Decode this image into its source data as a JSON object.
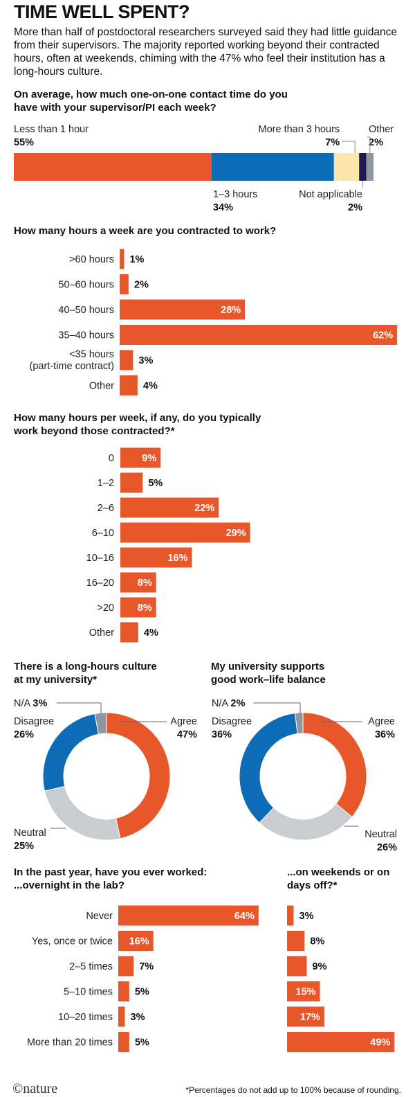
{
  "title": "TIME WELL SPENT?",
  "subtitle": "More than half of postdoctoral researchers surveyed said they had little guidance from their supervisors. The majority reported working beyond their contracted hours, often at weekends, chiming with the 47% who feel their institution has a long-hours culture.",
  "footnote": "*Percentages do not add up to 100% because of rounding.",
  "brand": "©nature",
  "colors": {
    "orange": "#e8572a",
    "blue": "#0e6bb5",
    "cream": "#fde6ac",
    "navy": "#1b1a52",
    "gray": "#8f96a0",
    "lightgray": "#c9ccd1"
  },
  "chart_data": [
    {
      "type": "bar",
      "stacked": true,
      "title": "On average, how much one-on-one contact time do you have with your supervisor/PI each week?",
      "segments": [
        {
          "label": "Less than 1 hour",
          "value": 55,
          "display": "55%",
          "color": "#e8572a"
        },
        {
          "label": "1–3 hours",
          "value": 34,
          "display": "34%",
          "color": "#0e6bb5"
        },
        {
          "label": "More than 3 hours",
          "value": 7,
          "display": "7%",
          "color": "#fde6ac"
        },
        {
          "label": "Not applicable",
          "value": 2,
          "display": "2%",
          "color": "#1b1a52"
        },
        {
          "label": "Other",
          "value": 2,
          "display": "2%",
          "color": "#8f96a0"
        }
      ]
    },
    {
      "type": "bar",
      "orientation": "horizontal",
      "title": "How many hours a week are you contracted to work?",
      "categories": [
        ">60 hours",
        "50–60 hours",
        "40–50 hours",
        "35–40 hours",
        "<35 hours\n(part-time contract)",
        "Other"
      ],
      "values": [
        1,
        2,
        28,
        62,
        3,
        4
      ],
      "labels": [
        "1%",
        "2%",
        "28%",
        "62%",
        "3%",
        "4%"
      ]
    },
    {
      "type": "bar",
      "orientation": "horizontal",
      "title": "How many hours per week, if any, do you typically work beyond those contracted?*",
      "categories": [
        "0",
        "1–2",
        "2–6",
        "6–10",
        "10–16",
        "16–20",
        ">20",
        "Other"
      ],
      "values": [
        9,
        5,
        22,
        29,
        16,
        8,
        8,
        4
      ],
      "labels": [
        "9%",
        "5%",
        "22%",
        "29%",
        "16%",
        "8%",
        "8%",
        "4%"
      ]
    },
    {
      "type": "pie",
      "donut": true,
      "title": "There is a long-hours culture at my university*",
      "slices": [
        {
          "label": "Agree",
          "value": 47,
          "display": "47%",
          "color": "#e8572a"
        },
        {
          "label": "Neutral",
          "value": 25,
          "display": "25%",
          "color": "#c9ccd1"
        },
        {
          "label": "Disagree",
          "value": 26,
          "display": "26%",
          "color": "#0e6bb5"
        },
        {
          "label": "N/A",
          "value": 3,
          "display": "3%",
          "color": "#8f96a0"
        }
      ]
    },
    {
      "type": "pie",
      "donut": true,
      "title": "My university supports good work–life balance",
      "slices": [
        {
          "label": "Agree",
          "value": 36,
          "display": "36%",
          "color": "#e8572a"
        },
        {
          "label": "Neutral",
          "value": 26,
          "display": "26%",
          "color": "#c9ccd1"
        },
        {
          "label": "Disagree",
          "value": 36,
          "display": "36%",
          "color": "#0e6bb5"
        },
        {
          "label": "N/A",
          "value": 2,
          "display": "2%",
          "color": "#8f96a0"
        }
      ]
    },
    {
      "type": "bar",
      "orientation": "horizontal",
      "title": "In the past year, have you ever worked: ...overnight in the lab?",
      "categories": [
        "Never",
        "Yes, once or twice",
        "2–5 times",
        "5–10 times",
        "10–20 times",
        "More than 20 times"
      ],
      "values": [
        64,
        16,
        7,
        5,
        3,
        5
      ],
      "labels": [
        "64%",
        "16%",
        "7%",
        "5%",
        "3%",
        "5%"
      ]
    },
    {
      "type": "bar",
      "orientation": "horizontal",
      "title": "...on weekends or on days off?*",
      "categories": [
        "Never",
        "Yes, once or twice",
        "2–5 times",
        "5–10 times",
        "10–20 times",
        "More than 20 times"
      ],
      "values": [
        3,
        8,
        9,
        15,
        17,
        49
      ],
      "labels": [
        "3%",
        "8%",
        "9%",
        "15%",
        "17%",
        "49%"
      ]
    }
  ]
}
